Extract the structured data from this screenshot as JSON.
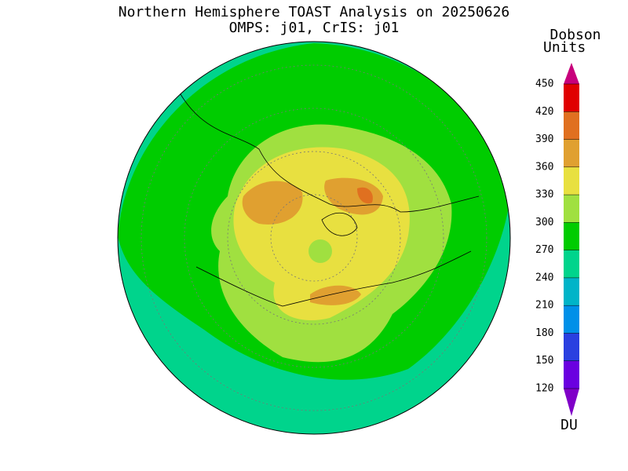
{
  "header": {
    "title": "Northern Hemisphere TOAST Analysis on 20250626",
    "subtitle": "OMPS: j01, CrIS: j01"
  },
  "legend": {
    "title_line1": "Dobson",
    "title_line2": "Units",
    "unit": "DU",
    "levels": [
      120,
      150,
      180,
      210,
      240,
      270,
      300,
      330,
      360,
      390,
      420,
      450
    ],
    "colors": [
      "#8000c8",
      "#6a00e0",
      "#2a40e0",
      "#0090e8",
      "#00b4c8",
      "#00d48c",
      "#00cc00",
      "#a0e040",
      "#e8e040",
      "#e0a030",
      "#e07020",
      "#e00000",
      "#c8007c"
    ]
  }
}
